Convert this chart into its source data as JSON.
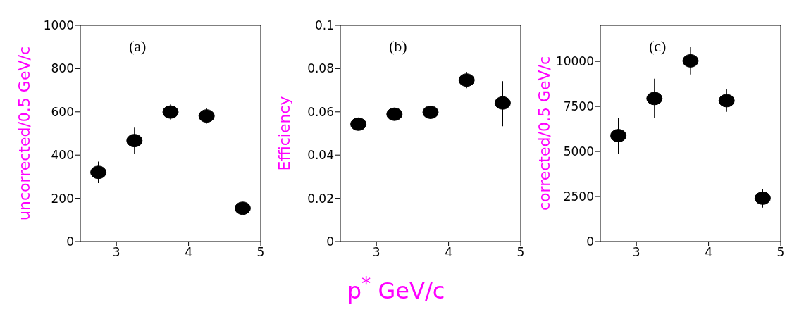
{
  "chart_data": [
    {
      "type": "scatter",
      "ylabel": "uncorrected/0.5 GeV/c",
      "annotations": [
        "(a)"
      ],
      "xlim": [
        2.5,
        5
      ],
      "xticks": [
        3,
        4,
        5
      ],
      "ylim": [
        0,
        1000
      ],
      "yticks": [
        0,
        200,
        400,
        600,
        800,
        1000
      ],
      "marker": "circle",
      "series": [
        {
          "color": "#000000",
          "x": [
            2.75,
            3.25,
            3.75,
            4.25,
            4.75
          ],
          "values": [
            320,
            467,
            599,
            581,
            154
          ],
          "errors": [
            50,
            60,
            35,
            35,
            null
          ]
        }
      ]
    },
    {
      "type": "scatter",
      "ylabel": "Efficiency",
      "xlabel": "p$^{*}$ GeV/c",
      "annotations": [
        "(b)"
      ],
      "xlim": [
        2.5,
        5
      ],
      "xticks": [
        3,
        4,
        5
      ],
      "ylim": [
        0,
        0.1
      ],
      "yticks": [
        0,
        0.02,
        0.04,
        0.06,
        0.08,
        0.1
      ],
      "marker": "circle",
      "series": [
        {
          "color": "#000000",
          "x": [
            2.75,
            3.25,
            3.75,
            4.25,
            4.75
          ],
          "values": [
            0.0543,
            0.0589,
            0.0598,
            0.0747,
            0.0641
          ],
          "errors": [
            null,
            null,
            null,
            0.0038,
            [
              0.0533,
              0.0742
            ]
          ]
        }
      ]
    },
    {
      "type": "scatter",
      "ylabel": "corrected/0.5 GeV/c",
      "annotations": [
        "(c)"
      ],
      "xlim": [
        2.5,
        5
      ],
      "xticks": [
        3,
        4,
        5
      ],
      "ylim": [
        0,
        12000
      ],
      "yticks": [
        0,
        2500,
        5000,
        7500,
        10000
      ],
      "marker": "circle",
      "series": [
        {
          "color": "#000000",
          "x": [
            2.75,
            3.25,
            3.75,
            4.25,
            4.75
          ],
          "values": [
            5880,
            7940,
            10030,
            7820,
            2410
          ],
          "errors": [
            990,
            1100,
            760,
            620,
            520
          ]
        }
      ]
    }
  ]
}
